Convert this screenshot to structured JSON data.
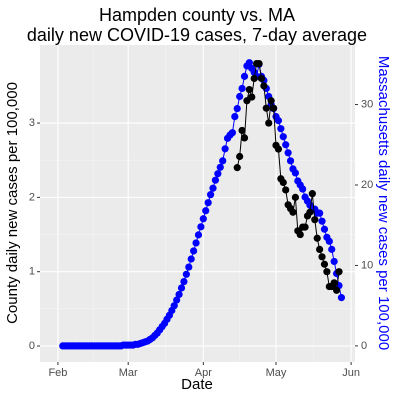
{
  "chart_data": {
    "type": "line",
    "title": "Hampden county vs. MA",
    "subtitle": "daily new COVID-19 cases, 7-day average",
    "x_label": "Date",
    "y_label": "County daily new cases  per 100,000",
    "y2_label": "Massachusetts daily new cases per 100,000",
    "xlim": [
      24.6,
      154.6
    ],
    "xticks": [
      {
        "value": 32,
        "label": "Feb"
      },
      {
        "value": 61,
        "label": "Mar"
      },
      {
        "value": 92,
        "label": "Apr"
      },
      {
        "value": 122,
        "label": "May"
      },
      {
        "value": 153,
        "label": "Jun"
      }
    ],
    "ylim": [
      -0.215,
      4.05
    ],
    "yticks": [
      0,
      1,
      2,
      3
    ],
    "y2lim": [
      -2.0,
      37.4
    ],
    "y2ticks": [
      0,
      10,
      20,
      30
    ],
    "grid": true,
    "series": [
      {
        "name": "Massachusetts",
        "color": "#0000ff",
        "axis": "y2",
        "x": [
          34,
          35,
          36,
          37,
          38,
          39,
          40,
          41,
          42,
          43,
          44,
          45,
          46,
          47,
          48,
          49,
          50,
          51,
          52,
          53,
          54,
          55,
          56,
          57,
          58,
          59,
          60,
          61,
          62,
          63,
          64,
          65,
          66,
          67,
          68,
          69,
          70,
          71,
          72,
          73,
          74,
          75,
          76,
          77,
          78,
          79,
          80,
          81,
          82,
          83,
          84,
          85,
          86,
          87,
          88,
          89,
          90,
          91,
          92,
          93,
          94,
          95,
          96,
          97,
          98,
          99,
          100,
          101,
          102,
          103,
          104,
          105,
          106,
          107,
          108,
          109,
          110,
          111,
          112,
          113,
          114,
          115,
          116,
          117,
          118,
          119,
          120,
          121,
          122,
          123,
          124,
          125,
          126,
          127,
          128,
          129,
          130,
          131,
          132,
          133,
          134,
          135,
          136,
          137,
          138,
          139,
          140,
          141,
          142,
          143,
          144,
          145,
          146,
          147,
          148,
          149
        ],
        "values": [
          0,
          0,
          0,
          0,
          0,
          0,
          0,
          0,
          0,
          0,
          0,
          0,
          0,
          0,
          0,
          0,
          0,
          0,
          0,
          0,
          0,
          0,
          0,
          0,
          0,
          0.1,
          0.1,
          0.1,
          0.1,
          0.1,
          0.2,
          0.2,
          0.3,
          0.4,
          0.5,
          0.6,
          0.8,
          1.0,
          1.3,
          1.6,
          2.0,
          2.4,
          2.8,
          3.3,
          3.8,
          4.4,
          5.0,
          5.7,
          6.4,
          7.2,
          8.0,
          8.9,
          9.8,
          10.8,
          11.8,
          12.8,
          13.8,
          14.8,
          15.8,
          16.8,
          17.8,
          18.8,
          19.6,
          20.6,
          21.4,
          22.2,
          23.0,
          24.5,
          25.8,
          26.2,
          26.5,
          28.5,
          29.5,
          31.0,
          32.0,
          33.5,
          34.8,
          35.2,
          34.5,
          34.0,
          33.5,
          35.0,
          33.5,
          33.0,
          32.0,
          31.0,
          30.0,
          29.5,
          28.5,
          28.0,
          27.0,
          26.0,
          25.0,
          24.0,
          23.0,
          22.0,
          21.5,
          20.5,
          20.0,
          19.5,
          18.5,
          18.0,
          17.5,
          17.0,
          17.0,
          16.5,
          16.5,
          15.5,
          14.5,
          13.5,
          13.0,
          12.0,
          10.5,
          9.0,
          7.5,
          6.0
        ]
      },
      {
        "name": "Hampden county",
        "color": "#000000",
        "axis": "y",
        "x": [
          106,
          107,
          108,
          109,
          110,
          111,
          112,
          113,
          114,
          115,
          116,
          117,
          118,
          119,
          120,
          121,
          122,
          123,
          124,
          125,
          126,
          127,
          128,
          129,
          130,
          131,
          132,
          133,
          134,
          135,
          136,
          137,
          138,
          139,
          140,
          141,
          142,
          143,
          144,
          145,
          146,
          147,
          148
        ],
        "values": [
          2.4,
          2.55,
          2.9,
          2.8,
          3.3,
          3.45,
          3.35,
          3.6,
          3.8,
          3.8,
          3.6,
          3.5,
          3.2,
          3.0,
          3.3,
          3.2,
          2.7,
          2.65,
          2.25,
          2.2,
          2.1,
          1.9,
          1.85,
          1.8,
          2.0,
          1.55,
          1.5,
          1.6,
          1.6,
          1.75,
          1.8,
          2.05,
          1.7,
          1.45,
          1.3,
          1.2,
          1.1,
          1.0,
          0.8,
          0.8,
          0.85,
          0.75,
          1.0
        ]
      }
    ]
  }
}
